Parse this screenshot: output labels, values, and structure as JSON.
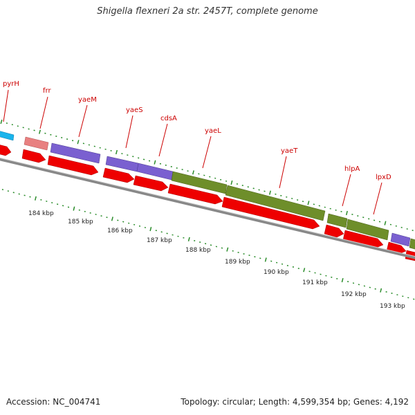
{
  "title": "Shigella flexneri 2a str. 2457T, complete genome",
  "footer": {
    "accession": "Accession: NC_004741",
    "topology": "Topology: circular; Length: 4,599,354 bp; Genes: 4,192"
  },
  "colors": {
    "cds_red": "#ee0000",
    "tick_green": "#2a8c2a",
    "label_red": "#cc0000",
    "backbone": "#888888",
    "cyan": "#19b4ec",
    "pink": "#e88080",
    "purple": "#7a60d0",
    "olive": "#6e8e2a"
  },
  "kbp_labels": [
    "184 kbp",
    "185 kbp",
    "186 kbp",
    "187 kbp",
    "188 kbp",
    "189 kbp",
    "190 kbp",
    "191 kbp",
    "192 kbp",
    "193 kbp"
  ],
  "gene_labels": [
    "pyrH",
    "frr",
    "yaeM",
    "yaeS",
    "cdsA",
    "yaeL",
    "yaeT",
    "hlpA",
    "lpxD"
  ]
}
